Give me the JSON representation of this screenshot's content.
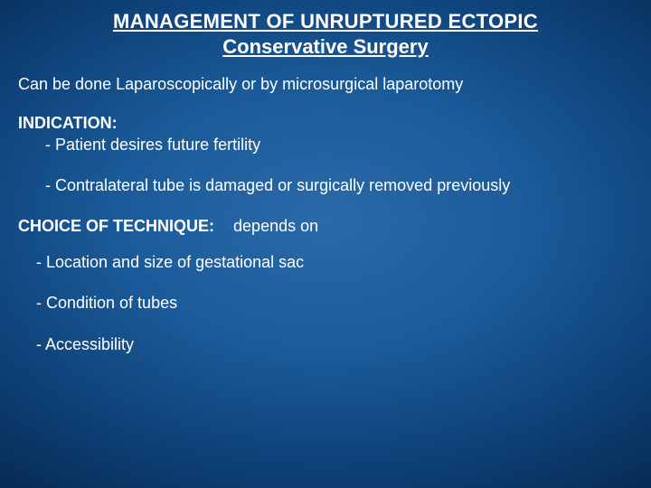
{
  "background": {
    "type": "radial-gradient",
    "center_color": "#2a6aa8",
    "edge_color": "#010d1f"
  },
  "typography": {
    "font_family": "Verdana",
    "title_fontsize_pt": 17,
    "body_fontsize_pt": 14,
    "text_color": "#ffffff"
  },
  "title": {
    "line1": "MANAGEMENT OF UNRUPTURED ECTOPIC",
    "line2": "Conservative Surgery"
  },
  "intro": "Can be done Laparoscopically or by microsurgical laparotomy",
  "indication": {
    "heading": "INDICATION:",
    "items": [
      "- Patient desires future fertility",
      "- Contralateral tube is damaged or surgically removed previously"
    ]
  },
  "technique": {
    "heading": "CHOICE OF TECHNIQUE:",
    "depends": "depends on",
    "items": [
      "- Location and size of gestational sac",
      "- Condition of tubes",
      "- Accessibility"
    ]
  }
}
